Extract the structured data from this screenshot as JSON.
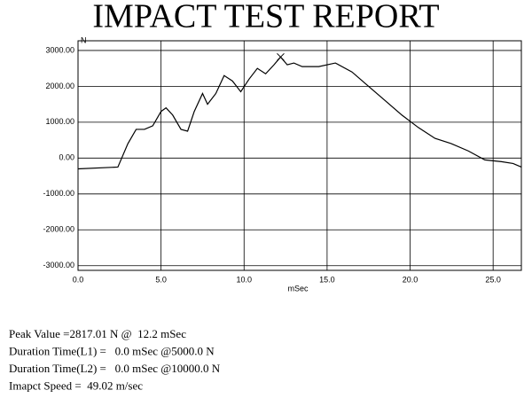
{
  "chart_data": {
    "type": "line",
    "title": "IMPACT TEST REPORT",
    "y_label": "N",
    "x_label": "mSec",
    "x": [
      0,
      2.4,
      3.0,
      3.5,
      4.0,
      4.5,
      5.0,
      5.3,
      5.7,
      6.2,
      6.6,
      7.0,
      7.5,
      7.8,
      8.3,
      8.8,
      9.3,
      9.8,
      10.3,
      10.8,
      11.3,
      11.8,
      12.2,
      12.6,
      13.0,
      13.5,
      14.5,
      15.5,
      16.5,
      17.5,
      18.5,
      19.5,
      20.5,
      21.5,
      22.5,
      23.5,
      24.5,
      25.5,
      26.2,
      26.7
    ],
    "series": [
      {
        "color": "#000000",
        "values": [
          -300,
          -250,
          400,
          800,
          800,
          900,
          1300,
          1400,
          1200,
          800,
          750,
          1300,
          1800,
          1500,
          1800,
          2300,
          2150,
          1850,
          2200,
          2500,
          2350,
          2600,
          2817,
          2600,
          2650,
          2550,
          2550,
          2650,
          2400,
          2000,
          1600,
          1200,
          850,
          550,
          400,
          200,
          -50,
          -100,
          -150,
          -250
        ]
      }
    ],
    "xlim": [
      0,
      26.7
    ],
    "xticks": [
      {
        "value": 0,
        "label": "0.0"
      },
      {
        "value": 5,
        "label": "5.0"
      },
      {
        "value": 10,
        "label": "10.0"
      },
      {
        "value": 15,
        "label": "15.0"
      },
      {
        "value": 20,
        "label": "20.0"
      },
      {
        "value": 25,
        "label": "25.0"
      }
    ],
    "ylim": [
      -3130,
      3270
    ],
    "yticks": [
      {
        "value": 3000,
        "label": "3000.00"
      },
      {
        "value": 2000,
        "label": "2000.00"
      },
      {
        "value": 1000,
        "label": "1000.00"
      },
      {
        "value": 0,
        "label": "0.00"
      },
      {
        "value": -1000,
        "label": "-1000.00"
      },
      {
        "value": -2000,
        "label": "-2000.00"
      },
      {
        "value": -3000,
        "label": "-3000.00"
      }
    ],
    "grid": true,
    "annotations": [
      "Peak Value =2817.01 N @  12.2 mSec",
      "Duration Time(L1) =   0.0 mSec @5000.0 N",
      "Duration Time(L2) =   0.0 mSec @10000.0 N",
      "Imapct Speed =  49.02 m/sec"
    ]
  }
}
